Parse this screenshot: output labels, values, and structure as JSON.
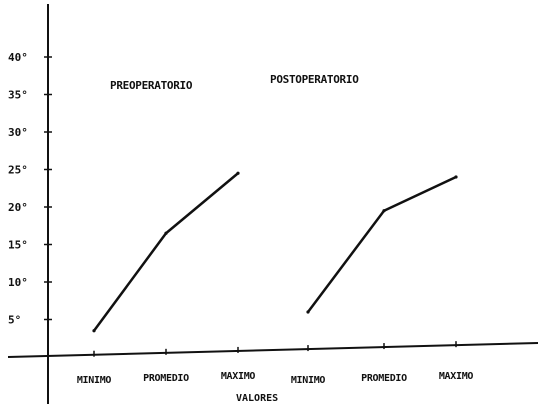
{
  "chart_data": {
    "type": "line",
    "y_tick_labels": [
      "5°",
      "10°",
      "15°",
      "20°",
      "25°",
      "30°",
      "35°",
      "40°"
    ],
    "y_ticks": [
      5,
      10,
      15,
      20,
      25,
      30,
      35,
      40
    ],
    "ylim": [
      0,
      43
    ],
    "xlabel": "VALORES",
    "grid": false,
    "panels": [
      {
        "title": "PREOPERATORIO",
        "categories": [
          "MINIMO",
          "PROMEDIO",
          "MAXIMO"
        ],
        "values": [
          3.5,
          16.5,
          24.5
        ]
      },
      {
        "title": "POSTOPERATORIO",
        "categories": [
          "MINIMO",
          "PROMEDIO",
          "MAXIMO"
        ],
        "values": [
          6,
          19.5,
          24
        ]
      }
    ]
  },
  "style": {
    "line_color": "#111111",
    "axis_color": "#111111",
    "background": "#ffffff"
  }
}
